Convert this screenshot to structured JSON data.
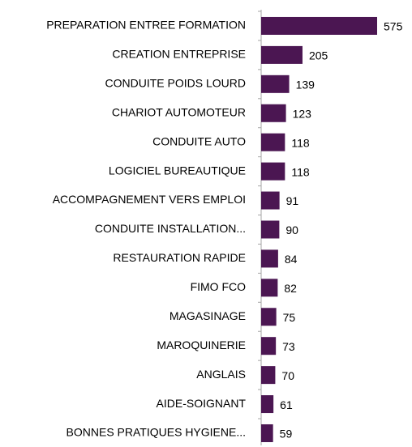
{
  "chart_data": {
    "type": "bar",
    "orientation": "horizontal",
    "categories": [
      "PREPARATION ENTREE FORMATION",
      "CREATION ENTREPRISE",
      "CONDUITE POIDS LOURD",
      "CHARIOT AUTOMOTEUR",
      "CONDUITE AUTO",
      "LOGICIEL BUREAUTIQUE",
      "ACCOMPAGNEMENT VERS EMPLOI",
      "CONDUITE INSTALLATION...",
      "RESTAURATION RAPIDE",
      "FIMO FCO",
      "MAGASINAGE",
      "MAROQUINERIE",
      "ANGLAIS",
      "AIDE-SOIGNANT",
      "BONNES PRATIQUES HYGIENE..."
    ],
    "values": [
      575,
      205,
      139,
      123,
      118,
      118,
      91,
      90,
      84,
      82,
      75,
      73,
      70,
      61,
      59
    ],
    "color": "#4b1652"
  }
}
